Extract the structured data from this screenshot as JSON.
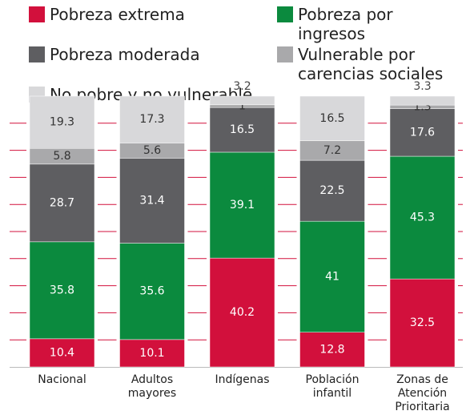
{
  "chart_data": {
    "type": "stacked_bar",
    "categories": [
      "Nacional",
      "Adultos mayores",
      "Indígenas",
      "Población infantil",
      "Zonas de Atención Prioritaria"
    ],
    "series": [
      {
        "name": "Pobreza extrema",
        "color": "#d2103c",
        "values": [
          10.4,
          10.1,
          40.2,
          12.8,
          32.5
        ]
      },
      {
        "name": "Pobreza por ingresos",
        "color": "#0b8a3e",
        "values": [
          35.8,
          35.6,
          39.1,
          41,
          45.3
        ]
      },
      {
        "name": "Pobreza moderada",
        "color": "#5e5e61",
        "values": [
          28.7,
          31.4,
          16.5,
          22.5,
          17.6
        ]
      },
      {
        "name": "Vulnerable por carencias sociales",
        "color": "#a9a9ab",
        "values": [
          5.8,
          5.6,
          1,
          7.2,
          1.3
        ]
      },
      {
        "name": "No pobre y no vulnerable",
        "color": "#d8d8da",
        "values": [
          19.3,
          17.3,
          3.2,
          16.5,
          3.3
        ]
      }
    ]
  }
}
